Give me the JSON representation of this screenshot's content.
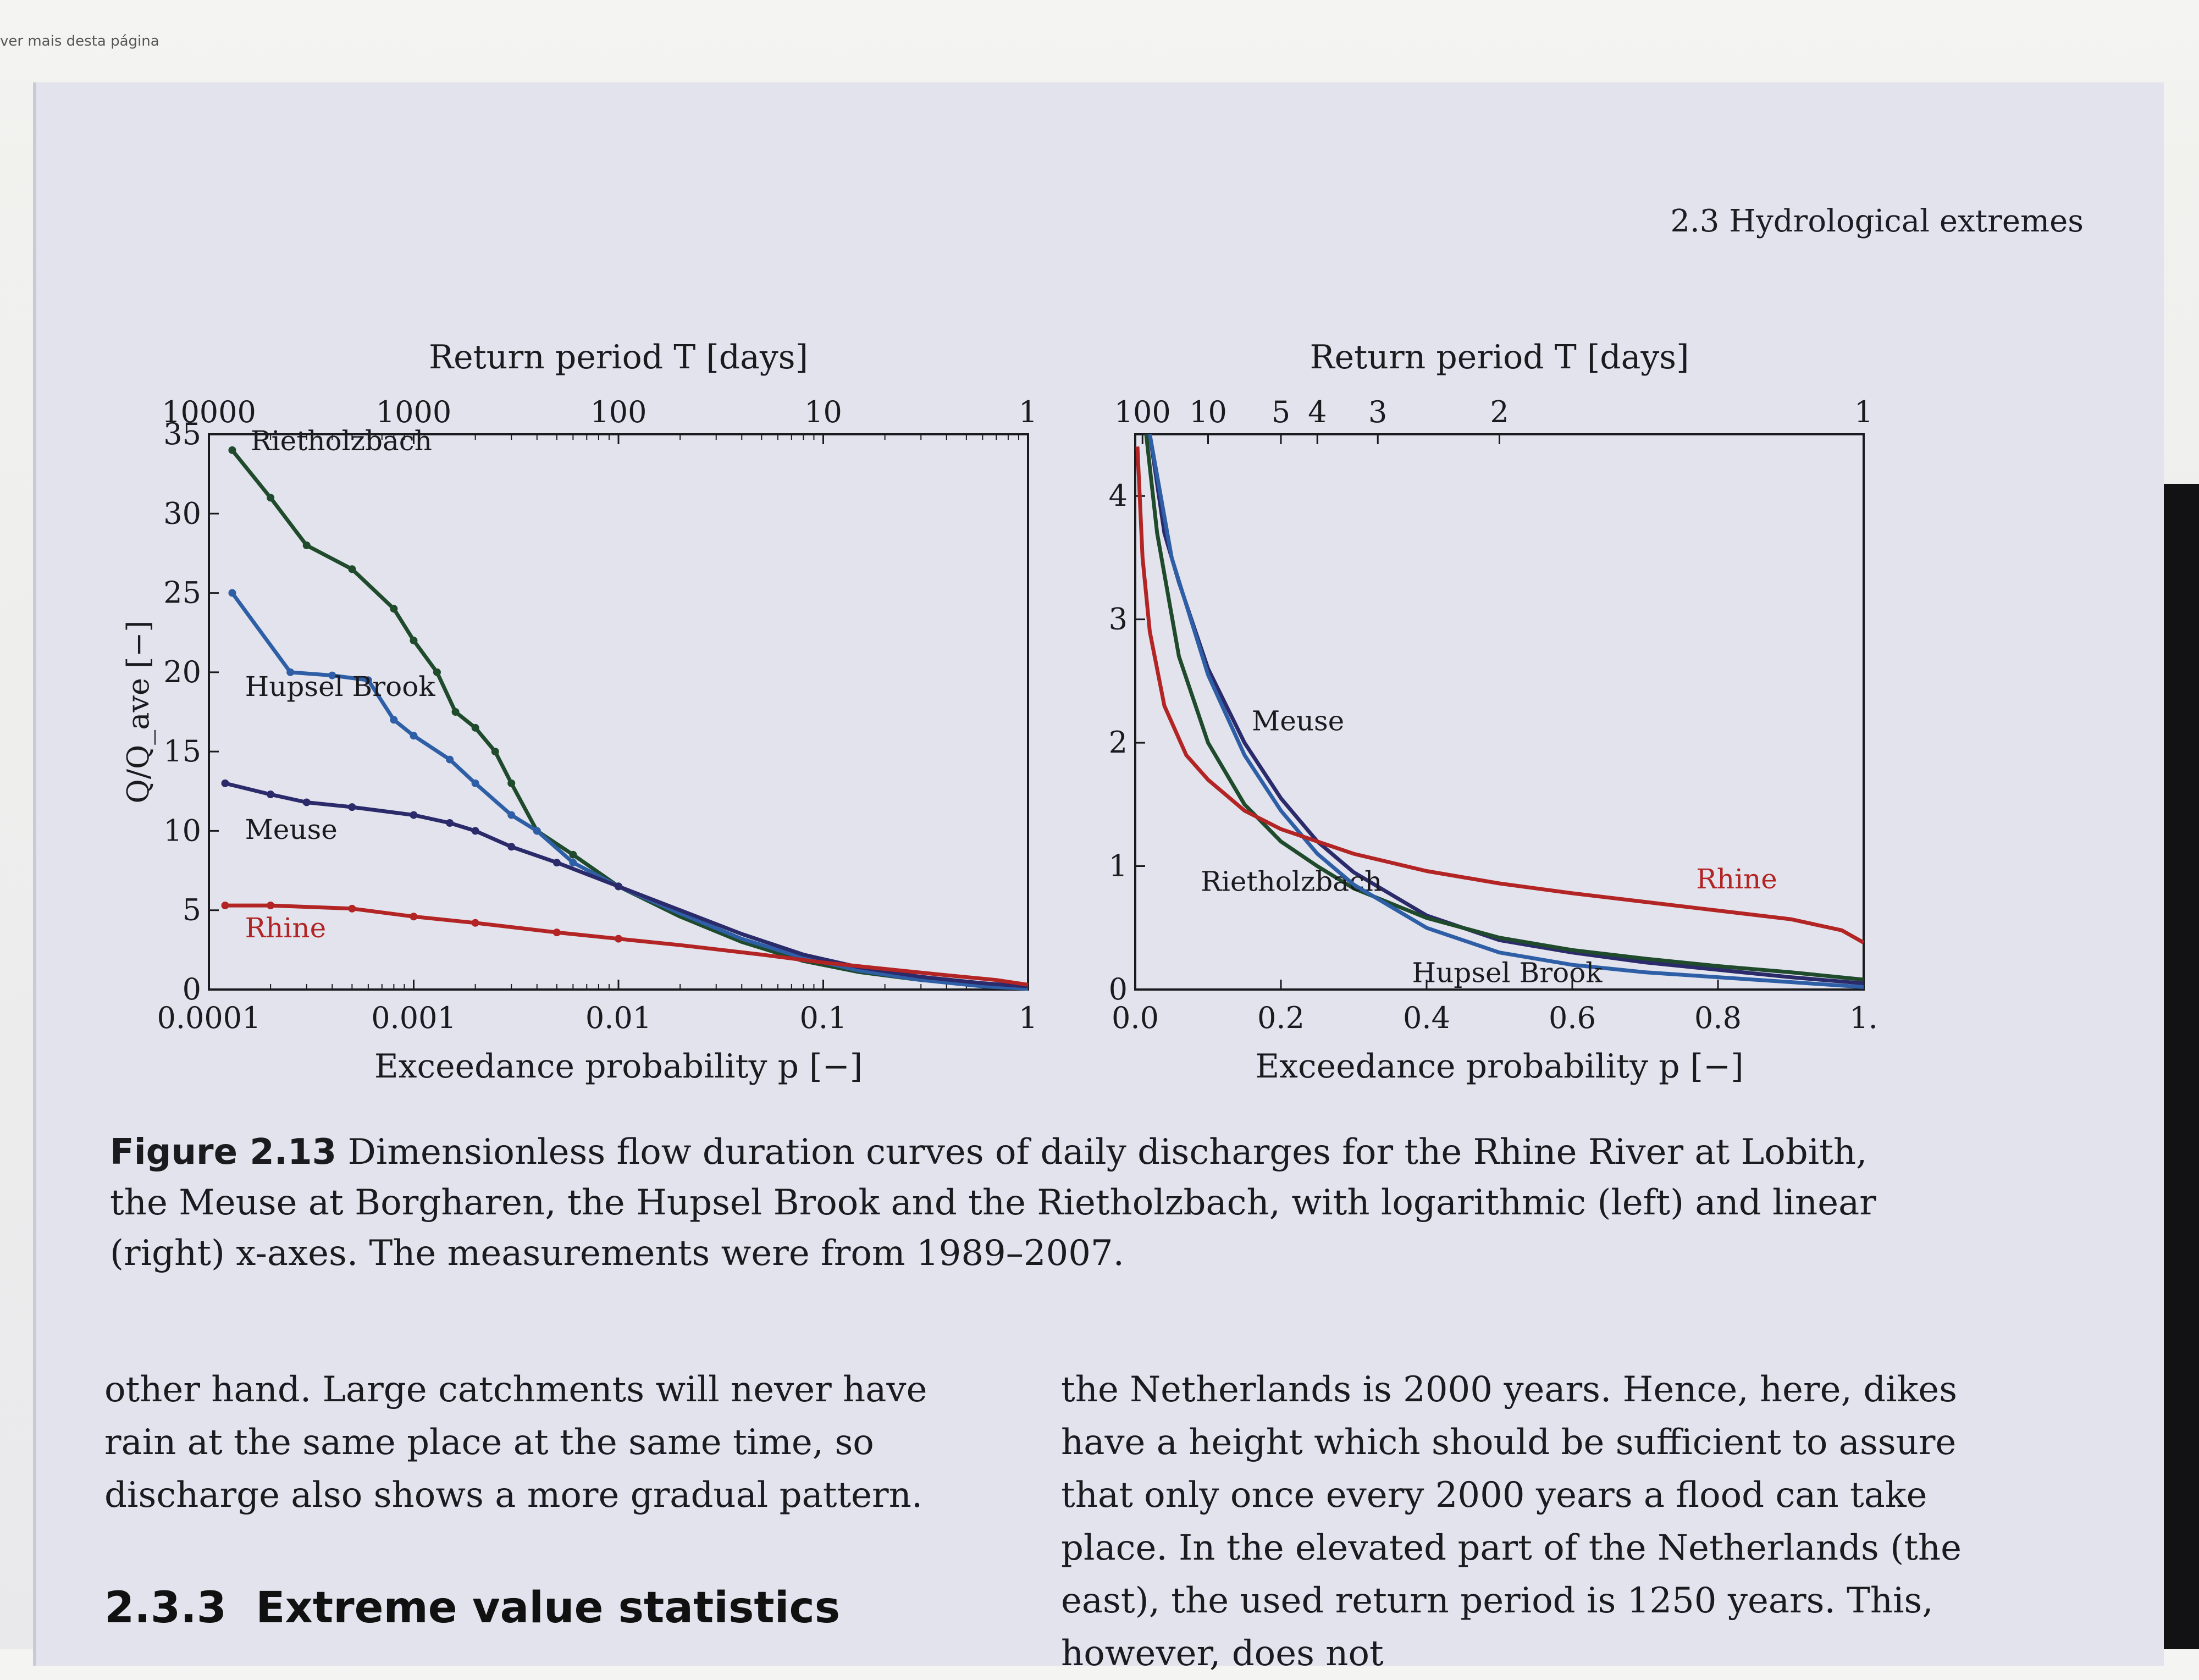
{
  "browser_fragment": "ver mais desta página",
  "running_header": "2.3 Hydrological extremes",
  "chart_data": [
    {
      "type": "line",
      "x_scale": "log",
      "xlabel": "Exceedance probability p [−]",
      "ylabel": "Q/Q_ave [−]",
      "top_axis_label": "Return period T [days]",
      "xlim": [
        0.0001,
        1
      ],
      "ylim": [
        0,
        35
      ],
      "x_ticks": [
        {
          "v": 0.0001,
          "label": "0.0001"
        },
        {
          "v": 0.001,
          "label": "0.001"
        },
        {
          "v": 0.01,
          "label": "0.01"
        },
        {
          "v": 0.1,
          "label": "0.1"
        },
        {
          "v": 1,
          "label": "1"
        }
      ],
      "y_ticks": [
        {
          "v": 0,
          "label": "0"
        },
        {
          "v": 5,
          "label": "5"
        },
        {
          "v": 10,
          "label": "10"
        },
        {
          "v": 15,
          "label": "15"
        },
        {
          "v": 20,
          "label": "20"
        },
        {
          "v": 25,
          "label": "25"
        },
        {
          "v": 30,
          "label": "30"
        },
        {
          "v": 35,
          "label": "35"
        }
      ],
      "top_ticks": [
        {
          "p": 0.0001,
          "label": "10000"
        },
        {
          "p": 0.001,
          "label": "1000"
        },
        {
          "p": 0.01,
          "label": "100"
        },
        {
          "p": 0.1,
          "label": "10"
        },
        {
          "p": 1,
          "label": "1"
        }
      ],
      "series": [
        {
          "name": "Rietholzbach",
          "color": "#1f4a2c",
          "label_at": [
            0.00016,
            34
          ],
          "points": [
            [
              0.00013,
              34
            ],
            [
              0.0002,
              31
            ],
            [
              0.0003,
              28
            ],
            [
              0.0005,
              26.5
            ],
            [
              0.0008,
              24
            ],
            [
              0.001,
              22
            ],
            [
              0.0013,
              20
            ],
            [
              0.0016,
              17.5
            ],
            [
              0.002,
              16.5
            ],
            [
              0.0025,
              15
            ],
            [
              0.003,
              13
            ],
            [
              0.004,
              10
            ],
            [
              0.006,
              8.5
            ],
            [
              0.01,
              6.5
            ],
            [
              0.02,
              4.6
            ],
            [
              0.04,
              3
            ],
            [
              0.08,
              1.8
            ],
            [
              0.15,
              1.1
            ],
            [
              0.3,
              0.6
            ],
            [
              0.6,
              0.3
            ],
            [
              1,
              0.1
            ]
          ]
        },
        {
          "name": "Hupsel Brook",
          "color": "#2e5fa6",
          "label_at": [
            0.00015,
            18.5
          ],
          "points": [
            [
              0.00013,
              25
            ],
            [
              0.00025,
              20
            ],
            [
              0.0004,
              19.8
            ],
            [
              0.0006,
              19.5
            ],
            [
              0.0008,
              17
            ],
            [
              0.001,
              16
            ],
            [
              0.0015,
              14.5
            ],
            [
              0.002,
              13
            ],
            [
              0.003,
              11
            ],
            [
              0.004,
              10
            ],
            [
              0.006,
              8
            ],
            [
              0.01,
              6.5
            ],
            [
              0.02,
              4.8
            ],
            [
              0.04,
              3.2
            ],
            [
              0.08,
              2
            ],
            [
              0.15,
              1.2
            ],
            [
              0.3,
              0.6
            ],
            [
              0.6,
              0.2
            ],
            [
              1,
              0.05
            ]
          ]
        },
        {
          "name": "Meuse",
          "color": "#2b2a6b",
          "label_at": [
            0.00015,
            9.5
          ],
          "points": [
            [
              0.00012,
              13
            ],
            [
              0.0002,
              12.3
            ],
            [
              0.0003,
              11.8
            ],
            [
              0.0005,
              11.5
            ],
            [
              0.001,
              11
            ],
            [
              0.0015,
              10.5
            ],
            [
              0.002,
              10
            ],
            [
              0.003,
              9
            ],
            [
              0.005,
              8
            ],
            [
              0.01,
              6.5
            ],
            [
              0.02,
              5
            ],
            [
              0.04,
              3.5
            ],
            [
              0.08,
              2.2
            ],
            [
              0.15,
              1.4
            ],
            [
              0.3,
              0.8
            ],
            [
              0.6,
              0.4
            ],
            [
              1,
              0.2
            ]
          ]
        },
        {
          "name": "Rhine",
          "color": "#b32424",
          "label_at": [
            0.00015,
            3.3
          ],
          "points": [
            [
              0.00012,
              5.3
            ],
            [
              0.0002,
              5.3
            ],
            [
              0.0005,
              5.1
            ],
            [
              0.001,
              4.6
            ],
            [
              0.002,
              4.2
            ],
            [
              0.005,
              3.6
            ],
            [
              0.01,
              3.2
            ],
            [
              0.02,
              2.8
            ],
            [
              0.05,
              2.2
            ],
            [
              0.1,
              1.7
            ],
            [
              0.2,
              1.3
            ],
            [
              0.4,
              0.9
            ],
            [
              0.7,
              0.6
            ],
            [
              1,
              0.3
            ]
          ]
        }
      ]
    },
    {
      "type": "line",
      "x_scale": "linear",
      "xlabel": "Exceedance probability p [−]",
      "ylabel": "",
      "top_axis_label": "Return period T [days]",
      "xlim": [
        0,
        1
      ],
      "ylim": [
        0,
        4.5
      ],
      "x_ticks": [
        {
          "v": 0,
          "label": "0.0"
        },
        {
          "v": 0.2,
          "label": "0.2"
        },
        {
          "v": 0.4,
          "label": "0.4"
        },
        {
          "v": 0.6,
          "label": "0.6"
        },
        {
          "v": 0.8,
          "label": "0.8"
        },
        {
          "v": 1,
          "label": "1."
        }
      ],
      "y_ticks": [
        {
          "v": 0,
          "label": "0"
        },
        {
          "v": 1,
          "label": "1"
        },
        {
          "v": 2,
          "label": "2"
        },
        {
          "v": 3,
          "label": "3"
        },
        {
          "v": 4,
          "label": "4"
        }
      ],
      "top_ticks": [
        {
          "p": 0.01,
          "label": "100"
        },
        {
          "p": 0.1,
          "label": "10"
        },
        {
          "p": 0.2,
          "label": "5"
        },
        {
          "p": 0.25,
          "label": "4"
        },
        {
          "p": 0.333,
          "label": "3"
        },
        {
          "p": 0.5,
          "label": "2"
        },
        {
          "p": 1,
          "label": "1"
        }
      ],
      "series": [
        {
          "name": "Meuse",
          "color": "#2b2a6b",
          "label_at": [
            0.16,
            2.1
          ],
          "points": [
            [
              0.02,
              4.5
            ],
            [
              0.04,
              3.7
            ],
            [
              0.06,
              3.3
            ],
            [
              0.1,
              2.6
            ],
            [
              0.15,
              2.0
            ],
            [
              0.2,
              1.55
            ],
            [
              0.25,
              1.2
            ],
            [
              0.3,
              0.95
            ],
            [
              0.4,
              0.6
            ],
            [
              0.5,
              0.4
            ],
            [
              0.6,
              0.3
            ],
            [
              0.7,
              0.22
            ],
            [
              0.8,
              0.16
            ],
            [
              0.9,
              0.1
            ],
            [
              1,
              0.05
            ]
          ]
        },
        {
          "name": "Rietholzbach",
          "color": "#1f4a2c",
          "label_at": [
            0.09,
            0.8
          ],
          "points": [
            [
              0.015,
              4.5
            ],
            [
              0.03,
              3.7
            ],
            [
              0.06,
              2.7
            ],
            [
              0.1,
              2.0
            ],
            [
              0.15,
              1.5
            ],
            [
              0.2,
              1.2
            ],
            [
              0.25,
              1.0
            ],
            [
              0.3,
              0.82
            ],
            [
              0.4,
              0.58
            ],
            [
              0.5,
              0.42
            ],
            [
              0.6,
              0.32
            ],
            [
              0.7,
              0.25
            ],
            [
              0.8,
              0.19
            ],
            [
              0.9,
              0.14
            ],
            [
              1,
              0.08
            ]
          ]
        },
        {
          "name": "Hupsel Brook",
          "color": "#2e5fa6",
          "label_at": [
            0.38,
            0.06
          ],
          "points": [
            [
              0.02,
              4.5
            ],
            [
              0.05,
              3.5
            ],
            [
              0.1,
              2.55
            ],
            [
              0.15,
              1.9
            ],
            [
              0.2,
              1.45
            ],
            [
              0.25,
              1.1
            ],
            [
              0.3,
              0.85
            ],
            [
              0.4,
              0.5
            ],
            [
              0.5,
              0.3
            ],
            [
              0.6,
              0.2
            ],
            [
              0.7,
              0.14
            ],
            [
              0.8,
              0.1
            ],
            [
              0.9,
              0.06
            ],
            [
              1,
              0.02
            ]
          ]
        },
        {
          "name": "Rhine",
          "color": "#b32424",
          "label_at": [
            0.77,
            0.82
          ],
          "points": [
            [
              0.003,
              4.4
            ],
            [
              0.01,
              3.5
            ],
            [
              0.02,
              2.9
            ],
            [
              0.04,
              2.3
            ],
            [
              0.07,
              1.9
            ],
            [
              0.1,
              1.7
            ],
            [
              0.15,
              1.45
            ],
            [
              0.2,
              1.3
            ],
            [
              0.3,
              1.1
            ],
            [
              0.4,
              0.96
            ],
            [
              0.5,
              0.86
            ],
            [
              0.6,
              0.78
            ],
            [
              0.7,
              0.71
            ],
            [
              0.8,
              0.64
            ],
            [
              0.9,
              0.57
            ],
            [
              0.97,
              0.48
            ],
            [
              1,
              0.38
            ]
          ]
        }
      ]
    }
  ],
  "caption": {
    "label": "Figure 2.13",
    "text": "Dimensionless flow duration curves of daily discharges for the Rhine River at Lobith, the Meuse at Borgharen, the Hupsel Brook and the Rietholzbach, with logarithmic (left) and linear (right) x-axes. The measurements were from 1989–2007."
  },
  "body_left": "other hand. Large catchments will never have rain at the same place at the same time, so discharge also shows a more gradual pattern.",
  "body_right": "the Netherlands is 2000 years. Hence, here, dikes have a height which should be sufficient to assure that only once every 2000 years a flood can take place. In the elevated part of the Netherlands (the east), the used return period is 1250 years. This, however, does not",
  "section": {
    "number": "2.3.3",
    "title": "Extreme value statistics"
  }
}
